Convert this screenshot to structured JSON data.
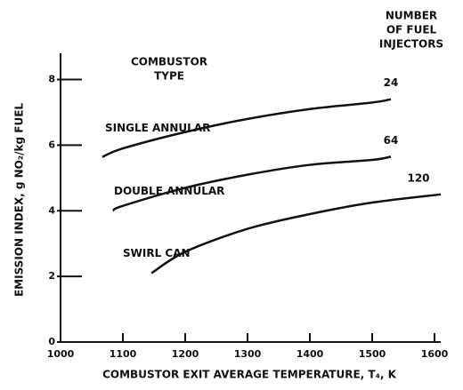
{
  "chart_data": {
    "type": "line",
    "xlabel": "COMBUSTOR EXIT AVERAGE TEMPERATURE, T₄, K",
    "ylabel": "EMISSION INDEX, g NO₂/kg FUEL",
    "type_header": [
      "COMBUSTOR",
      "TYPE"
    ],
    "injector_header": [
      "NUMBER",
      "OF FUEL",
      "INJECTORS"
    ],
    "xlim": [
      1000,
      1610
    ],
    "xticks": [
      1000,
      1100,
      1200,
      1300,
      1400,
      1500,
      1600
    ],
    "ylim": [
      0,
      8.8
    ],
    "yticks": [
      0,
      2,
      4,
      6,
      8
    ],
    "series": [
      {
        "name": "SINGLE ANNULAR",
        "injectors": 24,
        "color": "#111111",
        "x": [
          1067,
          1100,
          1200,
          1300,
          1400,
          1500,
          1530
        ],
        "values": [
          5.64,
          5.9,
          6.4,
          6.8,
          7.1,
          7.3,
          7.4
        ]
      },
      {
        "name": "DOUBLE ANNULAR",
        "injectors": 64,
        "color": "#111111",
        "x": [
          1084,
          1100,
          1200,
          1300,
          1400,
          1500,
          1530
        ],
        "values": [
          4.0,
          4.15,
          4.7,
          5.1,
          5.4,
          5.55,
          5.65
        ]
      },
      {
        "name": "SWIRL CAN",
        "injectors": 120,
        "color": "#111111",
        "x": [
          1146,
          1200,
          1300,
          1400,
          1500,
          1610
        ],
        "values": [
          2.1,
          2.75,
          3.45,
          3.9,
          4.25,
          4.5
        ]
      }
    ]
  }
}
